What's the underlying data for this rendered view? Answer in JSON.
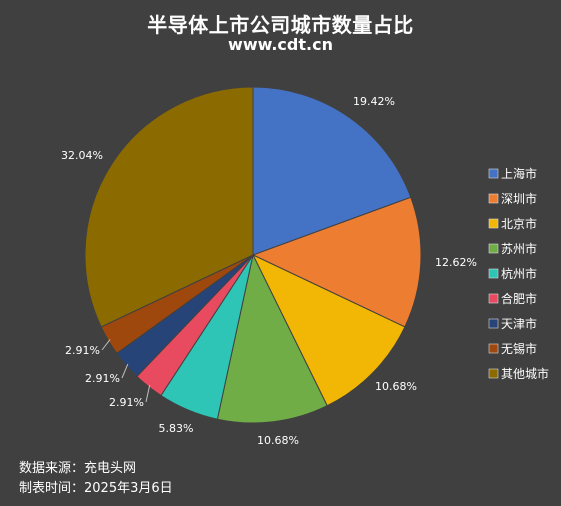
{
  "title": "半导体上市公司城市数量占比",
  "subtitle": "www.cdt.cn",
  "footer": {
    "source": "数据来源：充电头网",
    "date": "制表时间：2025年3月6日"
  },
  "chart_data": {
    "type": "pie",
    "title": "半导体上市公司城市数量占比",
    "legend_position": "right",
    "slices": [
      {
        "name": "上海市",
        "value": 19.42,
        "label": "19.42%",
        "color": "#4472C4"
      },
      {
        "name": "深圳市",
        "value": 12.62,
        "label": "12.62%",
        "color": "#ED7D31"
      },
      {
        "name": "北京市",
        "value": 10.68,
        "label": "10.68%",
        "color": "#F2B705"
      },
      {
        "name": "苏州市",
        "value": 10.68,
        "label": "10.68%",
        "color": "#70AD47"
      },
      {
        "name": "杭州市",
        "value": 5.83,
        "label": "5.83%",
        "color": "#2EC4B6"
      },
      {
        "name": "合肥市",
        "value": 2.91,
        "label": "2.91%",
        "color": "#E84A5F"
      },
      {
        "name": "天津市",
        "value": 2.91,
        "label": "2.91%",
        "color": "#264478"
      },
      {
        "name": "无锡市",
        "value": 2.91,
        "label": "2.91%",
        "color": "#9E480E"
      },
      {
        "name": "其他城市",
        "value": 32.04,
        "label": "32.04%",
        "color": "#8B6B00"
      }
    ]
  }
}
